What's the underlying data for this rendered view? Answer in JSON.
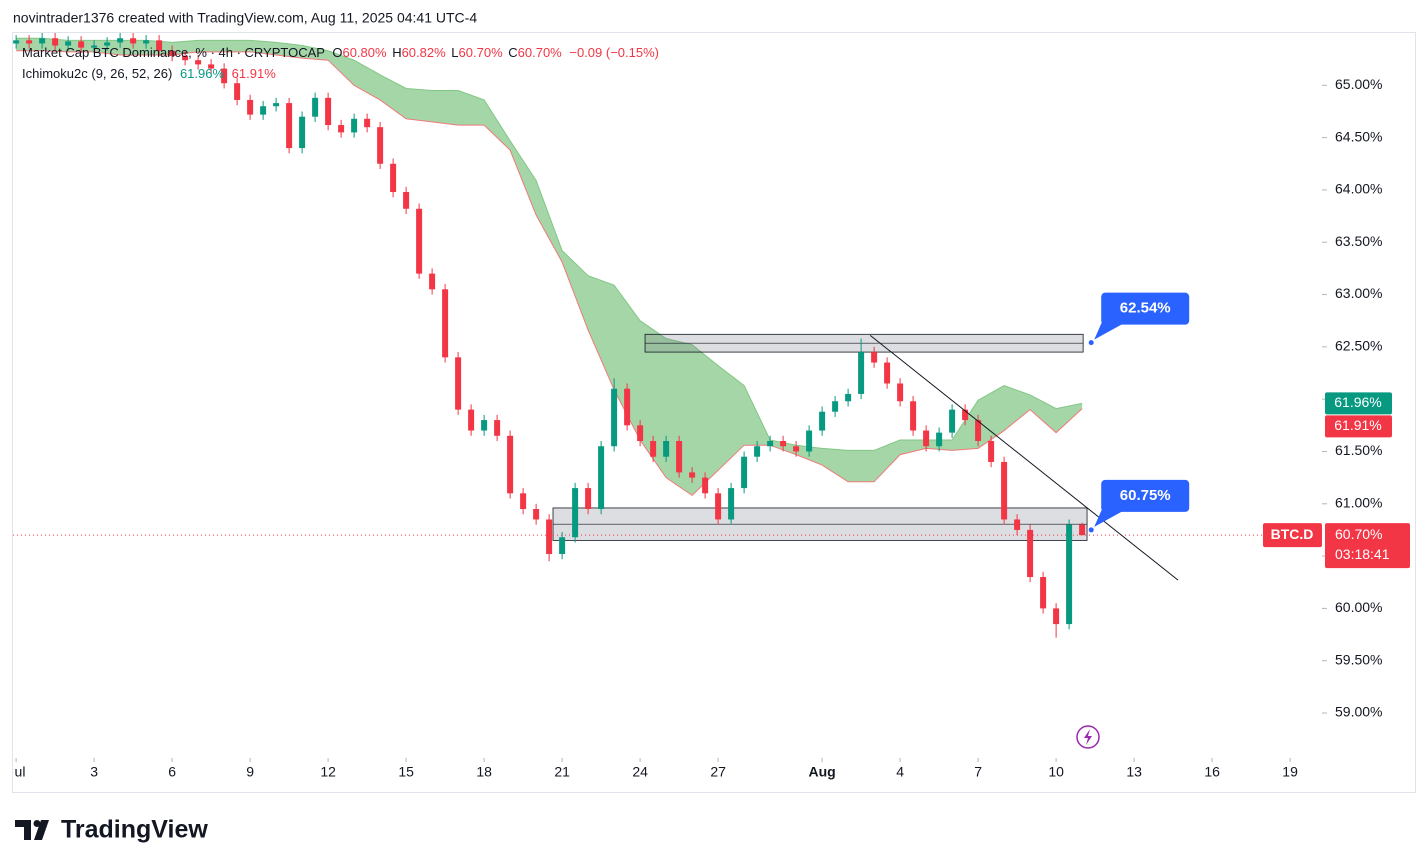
{
  "header": "novintrader1376 created with TradingView.com, Aug 11, 2025 04:41 UTC-4",
  "brand": "TradingView",
  "chart_data": {
    "type": "candlestick",
    "legend": {
      "title": "Market Cap BTC Dominance, % · 4h · CRYPTOCAP",
      "items": [
        {
          "key": "O",
          "value": 60.8,
          "label": "60.80%"
        },
        {
          "key": "H",
          "value": 60.82,
          "label": "60.82%"
        },
        {
          "key": "L",
          "value": 60.7,
          "label": "60.70%"
        },
        {
          "key": "C",
          "value": 60.7,
          "label": "60.70%"
        }
      ],
      "change": "−0.09 (−0.15%)"
    },
    "indicator": {
      "name": "Ichimoku2c (9, 26, 52, 26)",
      "values": [
        61.96,
        61.91
      ],
      "value_labels": [
        "61.96%",
        "61.91%"
      ],
      "colors": [
        "#089981",
        "#f23645"
      ]
    },
    "xlim": [
      -0.12,
      50.15
    ],
    "ylim": [
      58.57,
      65.5
    ],
    "xticks": [
      {
        "value": 0,
        "label": "ul"
      },
      3,
      6,
      9,
      12,
      15,
      18,
      21,
      24,
      27,
      {
        "value": 31,
        "label": "Aug"
      },
      {
        "value": 34,
        "label": "4"
      },
      {
        "value": 37,
        "label": "7"
      },
      {
        "value": 40,
        "label": "10"
      },
      {
        "value": 43,
        "label": "13"
      },
      {
        "value": 46,
        "label": "16"
      },
      {
        "value": 49,
        "label": "19"
      }
    ],
    "yticks": [
      {
        "value": 59,
        "label": "59.00%"
      },
      {
        "value": 59.5,
        "label": "59.50%"
      },
      {
        "value": 60,
        "label": "60.00%"
      },
      {
        "value": 60.5,
        "label": "60.50%"
      },
      {
        "value": 61,
        "label": "61.00%"
      },
      {
        "value": 61.5,
        "label": "61.50%"
      },
      {
        "value": 62,
        "label": "62.00%"
      },
      {
        "value": 62.5,
        "label": "62.50%"
      },
      {
        "value": 63,
        "label": "63.00%"
      },
      {
        "value": 63.5,
        "label": "63.50%"
      },
      {
        "value": 64,
        "label": "64.00%"
      },
      {
        "value": 64.5,
        "label": "64.50%"
      },
      {
        "value": 65,
        "label": "65.00%"
      }
    ],
    "up_color": "#089981",
    "down_color": "#f23645",
    "ohlc": {
      "x": [
        0,
        0.5,
        1,
        1.5,
        2,
        2.5,
        3,
        3.5,
        4,
        4.5,
        5,
        5.5,
        6,
        6.5,
        7,
        7.5,
        8,
        8.5,
        9,
        9.5,
        10,
        10.5,
        11,
        11.5,
        12,
        12.5,
        13,
        13.5,
        14,
        14.5,
        15,
        15.5,
        16,
        16.5,
        17,
        17.5,
        18,
        18.5,
        19,
        19.5,
        20,
        20.5,
        21,
        21.5,
        22,
        22.5,
        23,
        23.5,
        24,
        24.5,
        25,
        25.5,
        26,
        26.5,
        27,
        27.5,
        28,
        28.5,
        29,
        29.5,
        30,
        30.5,
        31,
        31.5,
        32,
        32.5,
        33,
        33.5,
        34,
        34.5,
        35,
        35.5,
        36,
        36.5,
        37,
        37.5,
        38,
        38.5,
        39,
        39.5,
        40,
        40.5,
        41
      ],
      "open": [
        65.4,
        65.43,
        65.4,
        65.45,
        65.38,
        65.42,
        65.36,
        65.38,
        65.41,
        65.45,
        65.4,
        65.43,
        65.33,
        65.28,
        65.24,
        65.2,
        65.16,
        65.02,
        64.86,
        64.72,
        64.8,
        64.83,
        64.4,
        64.7,
        64.88,
        64.62,
        64.55,
        64.68,
        64.6,
        64.25,
        63.98,
        63.82,
        63.2,
        63.05,
        62.4,
        61.9,
        61.7,
        61.8,
        61.65,
        61.1,
        60.95,
        60.85,
        60.52,
        60.68,
        61.15,
        60.95,
        61.55,
        62.1,
        61.75,
        61.6,
        61.45,
        61.6,
        61.3,
        61.25,
        61.1,
        60.85,
        61.15,
        61.45,
        61.55,
        61.6,
        61.55,
        61.5,
        61.7,
        61.88,
        61.98,
        62.05,
        62.45,
        62.35,
        62.15,
        61.98,
        61.7,
        61.55,
        61.68,
        61.9,
        61.8,
        61.6,
        61.4,
        60.85,
        60.75,
        60.3,
        60.0,
        59.85,
        60.8
      ],
      "high": [
        65.48,
        65.48,
        65.5,
        65.5,
        65.47,
        65.47,
        65.43,
        65.46,
        65.5,
        65.5,
        65.48,
        65.48,
        65.38,
        65.33,
        65.29,
        65.25,
        65.21,
        65.07,
        64.91,
        64.85,
        64.88,
        64.88,
        64.75,
        64.93,
        64.93,
        64.67,
        64.73,
        64.73,
        64.65,
        64.3,
        64.03,
        63.87,
        63.25,
        63.1,
        62.45,
        61.95,
        61.85,
        61.85,
        61.7,
        61.15,
        61.0,
        60.9,
        60.73,
        61.2,
        61.2,
        61.6,
        62.2,
        62.15,
        61.8,
        61.65,
        61.65,
        61.65,
        61.35,
        61.3,
        61.15,
        61.2,
        61.5,
        61.6,
        61.65,
        61.65,
        61.6,
        61.75,
        61.93,
        62.03,
        62.1,
        62.58,
        62.5,
        62.4,
        62.2,
        62.03,
        61.75,
        61.73,
        61.95,
        61.95,
        61.85,
        61.65,
        61.45,
        60.9,
        60.8,
        60.35,
        60.05,
        60.85,
        60.82
      ],
      "low": [
        65.35,
        65.35,
        65.35,
        65.33,
        65.33,
        65.31,
        65.31,
        65.33,
        65.36,
        65.35,
        65.35,
        65.28,
        65.23,
        65.19,
        65.15,
        65.11,
        64.97,
        64.81,
        64.67,
        64.67,
        64.75,
        64.35,
        64.35,
        64.65,
        64.57,
        64.5,
        64.5,
        64.55,
        64.2,
        63.93,
        63.77,
        63.15,
        63.0,
        62.35,
        61.85,
        61.65,
        61.65,
        61.6,
        61.05,
        60.9,
        60.8,
        60.45,
        60.47,
        60.63,
        60.9,
        60.9,
        61.5,
        61.7,
        61.55,
        61.4,
        61.4,
        61.25,
        61.2,
        61.05,
        60.8,
        60.8,
        61.1,
        61.4,
        61.5,
        61.5,
        61.45,
        61.45,
        61.65,
        61.83,
        61.93,
        62.0,
        62.3,
        62.1,
        61.93,
        61.65,
        61.5,
        61.5,
        61.63,
        61.75,
        61.55,
        61.35,
        60.8,
        60.7,
        60.25,
        59.95,
        59.72,
        59.8,
        60.7
      ],
      "close": [
        65.43,
        65.4,
        65.45,
        65.38,
        65.42,
        65.36,
        65.38,
        65.41,
        65.45,
        65.4,
        65.43,
        65.33,
        65.28,
        65.24,
        65.2,
        65.16,
        65.02,
        64.86,
        64.72,
        64.8,
        64.83,
        64.4,
        64.7,
        64.88,
        64.62,
        64.55,
        64.68,
        64.6,
        64.25,
        63.98,
        63.82,
        63.2,
        63.05,
        62.4,
        61.9,
        61.7,
        61.8,
        61.65,
        61.1,
        60.95,
        60.85,
        60.52,
        60.68,
        61.15,
        60.95,
        61.55,
        62.1,
        61.75,
        61.6,
        61.45,
        61.6,
        61.3,
        61.25,
        61.1,
        60.85,
        61.15,
        61.45,
        61.55,
        61.6,
        61.55,
        61.5,
        61.7,
        61.88,
        61.98,
        62.05,
        62.45,
        62.35,
        62.15,
        61.98,
        61.7,
        61.55,
        61.68,
        61.9,
        61.8,
        61.6,
        61.4,
        60.85,
        60.75,
        60.3,
        60.0,
        59.85,
        60.8,
        60.7
      ]
    },
    "cloud": {
      "x": [
        0,
        1,
        2,
        3,
        4,
        5,
        6,
        7,
        8,
        9,
        10,
        11,
        12,
        13,
        14,
        15,
        16,
        17,
        18,
        19,
        20,
        21,
        22,
        23,
        24,
        25,
        26,
        27,
        28,
        29,
        30,
        31,
        32,
        33,
        34,
        35,
        36,
        37,
        38,
        39,
        40,
        41
      ],
      "upper": [
        65.45,
        65.45,
        65.43,
        65.43,
        65.43,
        65.43,
        65.41,
        65.43,
        65.43,
        65.43,
        65.41,
        65.38,
        65.33,
        65.24,
        65.1,
        64.97,
        64.95,
        64.95,
        64.86,
        64.47,
        64.09,
        63.42,
        63.18,
        63.09,
        62.75,
        62.58,
        62.52,
        62.32,
        62.13,
        61.61,
        61.56,
        61.53,
        61.51,
        61.51,
        61.61,
        61.61,
        61.61,
        61.99,
        62.13,
        62.04,
        61.91,
        61.96
      ],
      "lower": [
        65.33,
        65.33,
        65.32,
        65.32,
        65.29,
        65.29,
        65.29,
        65.32,
        65.32,
        65.32,
        65.29,
        65.26,
        65.24,
        65.0,
        64.86,
        64.68,
        64.65,
        64.62,
        64.62,
        64.38,
        63.76,
        63.31,
        62.66,
        62.09,
        61.61,
        61.25,
        61.08,
        61.32,
        61.56,
        61.56,
        61.47,
        61.37,
        61.21,
        61.21,
        61.47,
        61.53,
        61.51,
        61.53,
        61.7,
        61.9,
        61.68,
        61.91
      ],
      "fill": "#a5d6a7",
      "upper_color": "#81c784",
      "lower_color": "#ef7a7a"
    },
    "zones": [
      {
        "x": [
          24.19,
          41.04
        ],
        "y": [
          62.45,
          62.62
        ]
      },
      {
        "x": [
          20.65,
          41.19
        ],
        "y": [
          60.65,
          60.96
        ]
      }
    ],
    "trendline": {
      "x": [
        32.85,
        44.69
      ],
      "y": [
        62.61,
        60.27
      ]
    },
    "callouts": [
      {
        "x": 41.35,
        "value": 62.54,
        "label": "62.54%"
      },
      {
        "x": 41.35,
        "value": 60.75,
        "label": "60.75%"
      }
    ],
    "current": {
      "symbol": "BTC.D",
      "value": 60.7,
      "label": "60.70%",
      "countdown": "03:18:41"
    }
  }
}
